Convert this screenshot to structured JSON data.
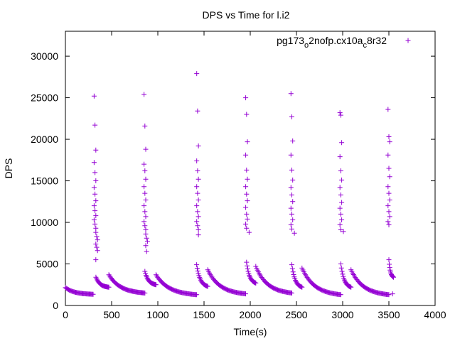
{
  "chart_data": {
    "type": "scatter",
    "title": "DPS vs Time for l.i2",
    "xlabel": "Time(s)",
    "ylabel": "DPS",
    "xlim": [
      0,
      4000
    ],
    "ylim": [
      0,
      33000
    ],
    "xticks": [
      0,
      500,
      1000,
      1500,
      2000,
      2500,
      3000,
      3500,
      4000
    ],
    "yticks": [
      0,
      5000,
      10000,
      15000,
      20000,
      25000,
      30000
    ],
    "xtick_labels": [
      "0",
      "500",
      "1000",
      "1500",
      "2000",
      "2500",
      "3000",
      "3500",
      "4000"
    ],
    "ytick_labels": [
      "0",
      "5000",
      "10000",
      "15000",
      "20000",
      "25000",
      "30000"
    ],
    "grid": false,
    "legend_position": "top-right",
    "series": [
      {
        "name": "pg173_o2nofp.cx10a_c8r32",
        "legend_parts": {
          "p1": "pg173",
          "s1": "o",
          "p2": "2nofp.cx10a",
          "s2": "c",
          "p3": "8r32"
        },
        "marker": "+",
        "color": "#9400d3",
        "spikes": [
          {
            "x": 320,
            "values": [
              25200,
              21700,
              18700,
              17200,
              16000,
              15000,
              14200,
              13400,
              12600,
              12000,
              11400,
              10800,
              10300,
              9800,
              9300,
              8800,
              8300,
              7900,
              7400,
              7000,
              6600,
              5500
            ]
          },
          {
            "x": 860,
            "values": [
              25400,
              21600,
              18800,
              17000,
              16200,
              15200,
              14300,
              13500,
              12700,
              12000,
              11300,
              10700,
              10100,
              9600,
              9100,
              8600,
              8100,
              7700,
              7200,
              6500
            ]
          },
          {
            "x": 1430,
            "values": [
              27900,
              23400,
              19200,
              17400,
              16200,
              15200,
              14300,
              13500,
              12700,
              12000,
              11300,
              10700,
              10100,
              9600,
              9100,
              8500
            ]
          },
          {
            "x": 1960,
            "values": [
              25000,
              23000,
              19700,
              18100,
              16300,
              15200,
              14300,
              13400,
              12600,
              11800,
              11000,
              10400,
              9800,
              9300,
              8800
            ]
          },
          {
            "x": 2450,
            "values": [
              25500,
              22700,
              19800,
              18100,
              16300,
              15100,
              14200,
              13300,
              12500,
              11700,
              11000,
              10300,
              9700,
              9200,
              8700
            ]
          },
          {
            "x": 2980,
            "values": [
              23200,
              22900,
              19600,
              17900,
              16200,
              15100,
              14200,
              13300,
              12400,
              11700,
              11000,
              10300,
              9700,
              9100,
              8900
            ]
          },
          {
            "x": 3500,
            "values": [
              23600,
              20300,
              19700,
              18100,
              16500,
              15500,
              14300,
              13500,
              12700,
              12000,
              11300,
              10700,
              10100,
              9700
            ]
          }
        ],
        "decays": [
          {
            "x_start": 0,
            "x_end": 300,
            "y_start": 2150,
            "y_end": 1350,
            "n": 36
          },
          {
            "x_start": 330,
            "x_end": 470,
            "y_start": 3400,
            "y_end": 2200,
            "n": 22
          },
          {
            "x_start": 470,
            "x_end": 860,
            "y_start": 3700,
            "y_end": 1500,
            "n": 48
          },
          {
            "x_start": 860,
            "x_end": 980,
            "y_start": 4100,
            "y_end": 2500,
            "n": 20
          },
          {
            "x_start": 980,
            "x_end": 1420,
            "y_start": 3700,
            "y_end": 1300,
            "n": 50
          },
          {
            "x_start": 1420,
            "x_end": 1540,
            "y_start": 4900,
            "y_end": 2300,
            "n": 20
          },
          {
            "x_start": 1540,
            "x_end": 1950,
            "y_start": 4300,
            "y_end": 1400,
            "n": 46
          },
          {
            "x_start": 1960,
            "x_end": 2060,
            "y_start": 5200,
            "y_end": 2700,
            "n": 18
          },
          {
            "x_start": 2060,
            "x_end": 2450,
            "y_start": 4700,
            "y_end": 1500,
            "n": 44
          },
          {
            "x_start": 2450,
            "x_end": 2560,
            "y_start": 4900,
            "y_end": 2200,
            "n": 18
          },
          {
            "x_start": 2560,
            "x_end": 2980,
            "y_start": 4500,
            "y_end": 1300,
            "n": 46
          },
          {
            "x_start": 2980,
            "x_end": 3090,
            "y_start": 5000,
            "y_end": 2200,
            "n": 18
          },
          {
            "x_start": 3090,
            "x_end": 3500,
            "y_start": 4300,
            "y_end": 1300,
            "n": 46
          },
          {
            "x_start": 3500,
            "x_end": 3550,
            "y_start": 5500,
            "y_end": 3400,
            "n": 12
          }
        ],
        "extra_points": [
          [
            3540,
            1400
          ]
        ]
      }
    ]
  }
}
